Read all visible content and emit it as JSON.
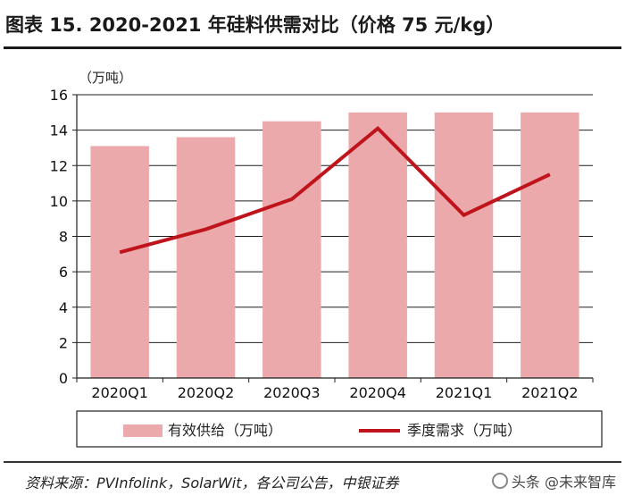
{
  "title": "图表 15. 2020-2021 年硅料供需对比（价格 75 元/kg）",
  "source": "资料来源：PVInfolink，SolarWit，各公司公告，中银证券",
  "watermark": {
    "text": "头条 @未来智库",
    "icon": "circle-logo-icon"
  },
  "chart_data": {
    "type": "bar",
    "unit_label": "（万吨）",
    "categories": [
      "2020Q1",
      "2020Q2",
      "2020Q3",
      "2020Q4",
      "2021Q1",
      "2021Q2"
    ],
    "ylim": [
      0,
      16
    ],
    "yticks": [
      0,
      2,
      4,
      6,
      8,
      10,
      12,
      14,
      16
    ],
    "grid": true,
    "legend_position": "bottom",
    "series": [
      {
        "name": "有效供给（万吨）",
        "type": "bar",
        "color": "#eba9ab",
        "values": [
          13.1,
          13.6,
          14.5,
          15.0,
          15.0,
          15.0
        ]
      },
      {
        "name": "季度需求（万吨）",
        "type": "line",
        "color": "#c0141c",
        "values": [
          7.1,
          8.4,
          10.1,
          14.1,
          9.2,
          11.5
        ]
      }
    ]
  }
}
